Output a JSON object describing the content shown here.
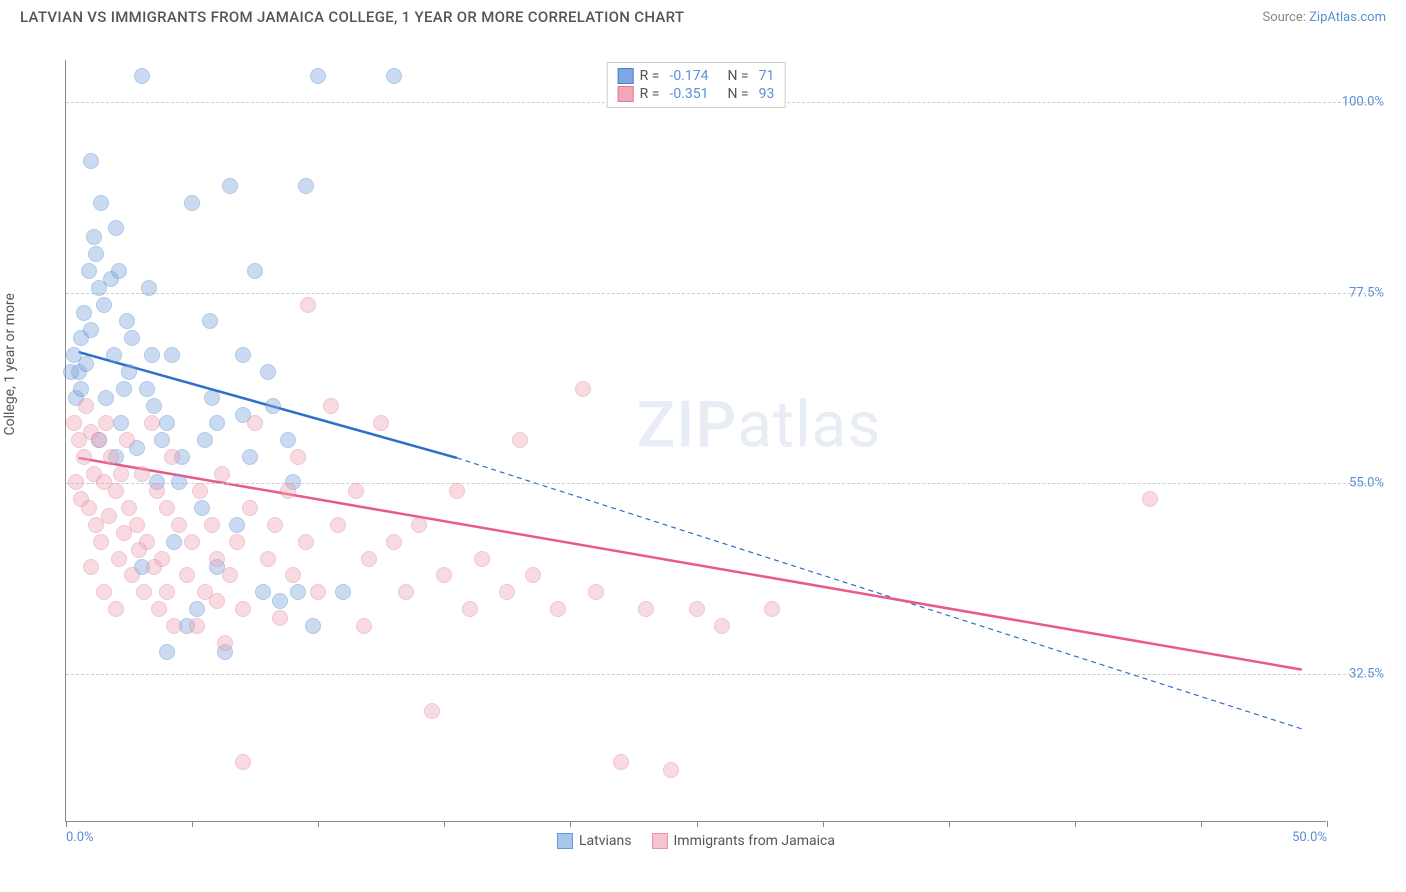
{
  "header": {
    "title": "LATVIAN VS IMMIGRANTS FROM JAMAICA COLLEGE, 1 YEAR OR MORE CORRELATION CHART",
    "source_prefix": "Source: ",
    "source_link": "ZipAtlas.com"
  },
  "chart": {
    "type": "scatter",
    "ylabel": "College, 1 year or more",
    "xlim": [
      0,
      50
    ],
    "ylim": [
      15,
      105
    ],
    "xticks": [
      0,
      5,
      10,
      15,
      20,
      25,
      30,
      35,
      40,
      45,
      50
    ],
    "xtick_labels": {
      "0": "0.0%",
      "50": "50.0%"
    },
    "yticks": [
      32.5,
      55.0,
      77.5,
      100.0
    ],
    "ytick_labels": [
      "32.5%",
      "55.0%",
      "77.5%",
      "100.0%"
    ],
    "background_color": "#ffffff",
    "grid_color": "#cccccc",
    "marker_radius": 8,
    "marker_opacity": 0.42,
    "series": [
      {
        "name": "Latvians",
        "color_fill": "#7fa8e0",
        "color_stroke": "#4a7fc9",
        "R": "-0.174",
        "N": "71",
        "trend": {
          "x1": 0.5,
          "y1": 70.5,
          "x2": 15.5,
          "y2": 58,
          "x_extend": 49,
          "y_extend": 26,
          "color": "#2d6fc9",
          "width": 2.5
        },
        "points": [
          [
            0.3,
            70
          ],
          [
            0.5,
            68
          ],
          [
            0.6,
            72
          ],
          [
            0.8,
            69
          ],
          [
            1.0,
            73
          ],
          [
            1.2,
            82
          ],
          [
            1.3,
            78
          ],
          [
            0.9,
            80
          ],
          [
            1.5,
            76
          ],
          [
            1.8,
            79
          ],
          [
            2.0,
            85
          ],
          [
            2.4,
            74
          ],
          [
            2.5,
            68
          ],
          [
            3.0,
            103
          ],
          [
            3.2,
            66
          ],
          [
            3.5,
            64
          ],
          [
            1.0,
            93
          ],
          [
            1.4,
            88
          ],
          [
            4.0,
            62
          ],
          [
            4.2,
            70
          ],
          [
            4.5,
            55
          ],
          [
            5.0,
            88
          ],
          [
            5.5,
            60
          ],
          [
            5.7,
            74
          ],
          [
            6.5,
            90
          ],
          [
            7.0,
            63
          ],
          [
            7.3,
            58
          ],
          [
            7.5,
            80
          ],
          [
            8.0,
            68
          ],
          [
            8.2,
            64
          ],
          [
            9.0,
            55
          ],
          [
            9.5,
            90
          ],
          [
            10.0,
            103
          ],
          [
            2.8,
            59
          ],
          [
            3.6,
            55
          ],
          [
            4.8,
            38
          ],
          [
            5.2,
            40
          ],
          [
            6.0,
            45
          ],
          [
            6.3,
            35
          ],
          [
            7.8,
            42
          ],
          [
            8.5,
            41
          ],
          [
            9.2,
            42
          ],
          [
            9.8,
            38
          ],
          [
            3.0,
            45
          ],
          [
            13.0,
            103
          ],
          [
            4.3,
            48
          ],
          [
            1.6,
            65
          ],
          [
            2.2,
            62
          ],
          [
            0.4,
            65
          ],
          [
            0.7,
            75
          ],
          [
            1.1,
            84
          ],
          [
            2.6,
            72
          ],
          [
            3.3,
            78
          ],
          [
            6.8,
            50
          ],
          [
            11.0,
            42
          ],
          [
            4.0,
            35
          ],
          [
            6.0,
            62
          ],
          [
            2.0,
            58
          ],
          [
            3.8,
            60
          ],
          [
            5.4,
            52
          ],
          [
            1.9,
            70
          ],
          [
            2.3,
            66
          ],
          [
            0.2,
            68
          ],
          [
            0.6,
            66
          ],
          [
            8.8,
            60
          ],
          [
            7.0,
            70
          ],
          [
            3.4,
            70
          ],
          [
            1.3,
            60
          ],
          [
            4.6,
            58
          ],
          [
            5.8,
            65
          ],
          [
            2.1,
            80
          ]
        ]
      },
      {
        "name": "Immigrants from Jamaica",
        "color_fill": "#f0a8b8",
        "color_stroke": "#e07998",
        "R": "-0.351",
        "N": "93",
        "trend": {
          "x1": 0.5,
          "y1": 58,
          "x2": 49,
          "y2": 33,
          "color": "#e85a8a",
          "width": 2.5
        },
        "points": [
          [
            0.3,
            62
          ],
          [
            0.5,
            60
          ],
          [
            0.7,
            58
          ],
          [
            0.8,
            64
          ],
          [
            1.0,
            61
          ],
          [
            1.1,
            56
          ],
          [
            1.3,
            60
          ],
          [
            1.5,
            55
          ],
          [
            1.6,
            62
          ],
          [
            1.8,
            58
          ],
          [
            2.0,
            54
          ],
          [
            2.2,
            56
          ],
          [
            2.4,
            60
          ],
          [
            2.5,
            52
          ],
          [
            2.8,
            50
          ],
          [
            3.0,
            56
          ],
          [
            3.2,
            48
          ],
          [
            3.4,
            62
          ],
          [
            3.6,
            54
          ],
          [
            3.8,
            46
          ],
          [
            4.0,
            52
          ],
          [
            4.2,
            58
          ],
          [
            4.5,
            50
          ],
          [
            4.8,
            44
          ],
          [
            5.0,
            48
          ],
          [
            5.3,
            54
          ],
          [
            5.5,
            42
          ],
          [
            5.8,
            50
          ],
          [
            6.0,
            46
          ],
          [
            6.2,
            56
          ],
          [
            6.5,
            44
          ],
          [
            6.8,
            48
          ],
          [
            7.0,
            40
          ],
          [
            7.3,
            52
          ],
          [
            7.5,
            62
          ],
          [
            8.0,
            46
          ],
          [
            8.3,
            50
          ],
          [
            8.5,
            39
          ],
          [
            9.0,
            44
          ],
          [
            9.2,
            58
          ],
          [
            9.5,
            48
          ],
          [
            9.6,
            76
          ],
          [
            10.0,
            42
          ],
          [
            10.5,
            64
          ],
          [
            11.5,
            54
          ],
          [
            12.0,
            46
          ],
          [
            12.5,
            62
          ],
          [
            13.5,
            42
          ],
          [
            14.0,
            50
          ],
          [
            14.5,
            28
          ],
          [
            15.0,
            44
          ],
          [
            15.5,
            54
          ],
          [
            16.0,
            40
          ],
          [
            16.5,
            46
          ],
          [
            17.5,
            42
          ],
          [
            18.0,
            60
          ],
          [
            18.5,
            44
          ],
          [
            19.5,
            40
          ],
          [
            20.5,
            66
          ],
          [
            21.0,
            42
          ],
          [
            22.0,
            22
          ],
          [
            23.0,
            40
          ],
          [
            24.0,
            21
          ],
          [
            25.0,
            40
          ],
          [
            26.0,
            38
          ],
          [
            28.0,
            40
          ],
          [
            43.0,
            53
          ],
          [
            1.2,
            50
          ],
          [
            1.4,
            48
          ],
          [
            2.1,
            46
          ],
          [
            2.6,
            44
          ],
          [
            3.1,
            42
          ],
          [
            3.7,
            40
          ],
          [
            4.3,
            38
          ],
          [
            0.4,
            55
          ],
          [
            0.6,
            53
          ],
          [
            0.9,
            52
          ],
          [
            1.7,
            51
          ],
          [
            2.3,
            49
          ],
          [
            2.9,
            47
          ],
          [
            3.5,
            45
          ],
          [
            5.2,
            38
          ],
          [
            6.3,
            36
          ],
          [
            7.0,
            22
          ],
          [
            8.8,
            54
          ],
          [
            10.8,
            50
          ],
          [
            11.8,
            38
          ],
          [
            13.0,
            48
          ],
          [
            1.0,
            45
          ],
          [
            1.5,
            42
          ],
          [
            2.0,
            40
          ],
          [
            4.0,
            42
          ],
          [
            6.0,
            41
          ]
        ]
      }
    ],
    "legend_top": {
      "r_label": "R =",
      "n_label": "N ="
    },
    "legend_bottom": [
      {
        "label": "Latvians",
        "fill": "#a8c5ed",
        "stroke": "#6a9ad6"
      },
      {
        "label": "Immigrants from Jamaica",
        "fill": "#f5c4d0",
        "stroke": "#e892ab"
      }
    ],
    "watermark": {
      "zip": "ZIP",
      "atlas": "atlas"
    }
  }
}
